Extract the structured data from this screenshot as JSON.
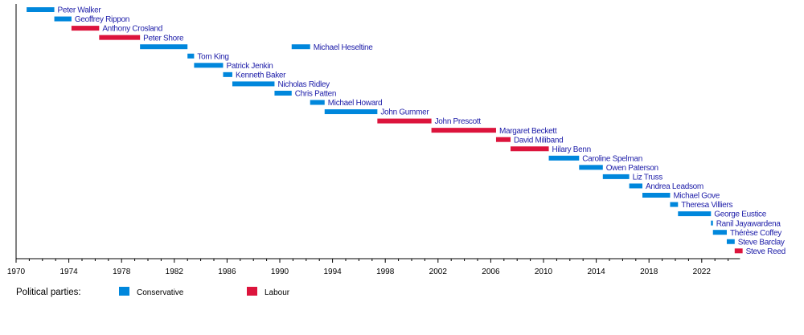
{
  "chart_data": {
    "type": "bar",
    "orientation": "timeline",
    "xlim": [
      1970,
      2024.9
    ],
    "x_ticks": [
      1970,
      1974,
      1978,
      1982,
      1986,
      1990,
      1994,
      1998,
      2002,
      2006,
      2010,
      2014,
      2018,
      2022
    ],
    "minor_tick_step": 1,
    "grid": false,
    "legend_title": "Political parties:",
    "legend_placement": "bottom-left",
    "parties": [
      {
        "name": "Conservative",
        "color": "#0087DC"
      },
      {
        "name": "Labour",
        "color": "#DC143C"
      }
    ],
    "label_color": "#1c1ca8",
    "rows": [
      {
        "label": "Peter Walker",
        "party": 0,
        "terms": [
          [
            1970.8,
            1972.9
          ]
        ]
      },
      {
        "label": "Geoffrey Rippon",
        "party": 0,
        "terms": [
          [
            1972.9,
            1974.2
          ]
        ]
      },
      {
        "label": "Anthony Crosland",
        "party": 1,
        "terms": [
          [
            1974.2,
            1976.3
          ]
        ]
      },
      {
        "label": "Peter Shore",
        "party": 1,
        "terms": [
          [
            1976.3,
            1979.4
          ]
        ]
      },
      {
        "label": "Michael Heseltine",
        "party": 0,
        "terms": [
          [
            1979.4,
            1983.0
          ],
          [
            1990.9,
            1992.3
          ]
        ]
      },
      {
        "label": "Tom King",
        "party": 0,
        "terms": [
          [
            1983.0,
            1983.5
          ]
        ]
      },
      {
        "label": "Patrick Jenkin",
        "party": 0,
        "terms": [
          [
            1983.5,
            1985.7
          ]
        ]
      },
      {
        "label": "Kenneth Baker",
        "party": 0,
        "terms": [
          [
            1985.7,
            1986.4
          ]
        ]
      },
      {
        "label": "Nicholas Ridley",
        "party": 0,
        "terms": [
          [
            1986.4,
            1989.6
          ]
        ]
      },
      {
        "label": "Chris Patten",
        "party": 0,
        "terms": [
          [
            1989.6,
            1990.9
          ]
        ]
      },
      {
        "label": "Michael Howard",
        "party": 0,
        "terms": [
          [
            1992.3,
            1993.4
          ]
        ]
      },
      {
        "label": "John Gummer",
        "party": 0,
        "terms": [
          [
            1993.4,
            1997.4
          ]
        ]
      },
      {
        "label": "John Prescott",
        "party": 1,
        "terms": [
          [
            1997.4,
            2001.5
          ]
        ]
      },
      {
        "label": "Margaret Beckett",
        "party": 1,
        "terms": [
          [
            2001.5,
            2006.4
          ]
        ]
      },
      {
        "label": "David Miliband",
        "party": 1,
        "terms": [
          [
            2006.4,
            2007.5
          ]
        ]
      },
      {
        "label": "Hilary Benn",
        "party": 1,
        "terms": [
          [
            2007.5,
            2010.4
          ]
        ]
      },
      {
        "label": "Caroline Spelman",
        "party": 0,
        "terms": [
          [
            2010.4,
            2012.7
          ]
        ]
      },
      {
        "label": "Owen Paterson",
        "party": 0,
        "terms": [
          [
            2012.7,
            2014.5
          ]
        ]
      },
      {
        "label": "Liz Truss",
        "party": 0,
        "terms": [
          [
            2014.5,
            2016.5
          ]
        ]
      },
      {
        "label": "Andrea Leadsom",
        "party": 0,
        "terms": [
          [
            2016.5,
            2017.5
          ]
        ]
      },
      {
        "label": "Michael Gove",
        "party": 0,
        "terms": [
          [
            2017.5,
            2019.6
          ]
        ]
      },
      {
        "label": "Theresa Villiers",
        "party": 0,
        "terms": [
          [
            2019.6,
            2020.2
          ]
        ]
      },
      {
        "label": "George Eustice",
        "party": 0,
        "terms": [
          [
            2020.2,
            2022.7
          ]
        ]
      },
      {
        "label": "Ranil Jayawardena",
        "party": 0,
        "terms": [
          [
            2022.7,
            2022.85
          ]
        ]
      },
      {
        "label": "Thérèse Coffey",
        "party": 0,
        "terms": [
          [
            2022.85,
            2023.9
          ]
        ]
      },
      {
        "label": "Steve Barclay",
        "party": 0,
        "terms": [
          [
            2023.9,
            2024.5
          ]
        ]
      },
      {
        "label": "Steve Reed",
        "party": 1,
        "terms": [
          [
            2024.5,
            2025.1
          ]
        ]
      }
    ]
  }
}
